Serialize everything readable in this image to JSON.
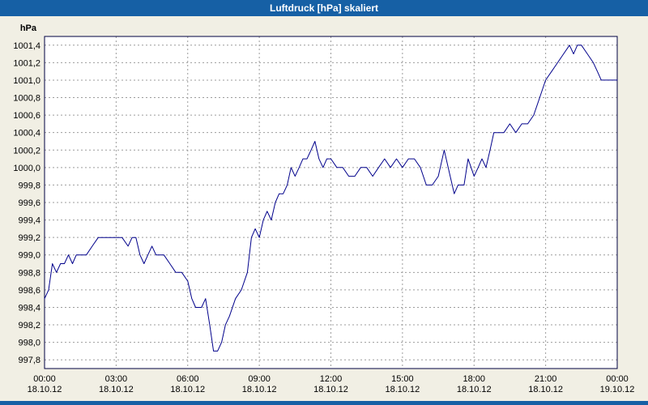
{
  "window": {
    "title": "Luftdruck [hPa] skaliert",
    "title_bar_color": "#1660a5",
    "frame_color": "#1660a5",
    "background_color": "#f1efe4"
  },
  "chart_data": {
    "type": "line",
    "title": "Luftdruck [hPa] skaliert",
    "unit_label": "hPa",
    "ylabel": "hPa",
    "xlabel": "",
    "grid": true,
    "legend": "none",
    "line_color": "#00008b",
    "grid_color": "#9c9c9c",
    "plot_background": "#ffffff",
    "ylim": [
      997.7,
      1001.5
    ],
    "xlim_hours": [
      0,
      24
    ],
    "y_ticks": [
      997.8,
      998.0,
      998.2,
      998.4,
      998.6,
      998.8,
      999.0,
      999.2,
      999.4,
      999.6,
      999.8,
      1000.0,
      1000.2,
      1000.4,
      1000.6,
      1000.8,
      1001.0,
      1001.2,
      1001.4
    ],
    "x_ticks": [
      {
        "hour": 0,
        "time": "00:00",
        "date": "18.10.12"
      },
      {
        "hour": 3,
        "time": "03:00",
        "date": "18.10.12"
      },
      {
        "hour": 6,
        "time": "06:00",
        "date": "18.10.12"
      },
      {
        "hour": 9,
        "time": "09:00",
        "date": "18.10.12"
      },
      {
        "hour": 12,
        "time": "12:00",
        "date": "18.10.12"
      },
      {
        "hour": 15,
        "time": "15:00",
        "date": "18.10.12"
      },
      {
        "hour": 18,
        "time": "18:00",
        "date": "18.10.12"
      },
      {
        "hour": 21,
        "time": "21:00",
        "date": "18.10.12"
      },
      {
        "hour": 24,
        "time": "00:00",
        "date": "19.10.12"
      }
    ],
    "series": [
      {
        "name": "Luftdruck",
        "points": [
          [
            0.0,
            998.5
          ],
          [
            0.17,
            998.6
          ],
          [
            0.33,
            998.9
          ],
          [
            0.5,
            998.8
          ],
          [
            0.67,
            998.9
          ],
          [
            0.83,
            998.9
          ],
          [
            1.0,
            999.0
          ],
          [
            1.17,
            998.9
          ],
          [
            1.33,
            999.0
          ],
          [
            1.5,
            999.0
          ],
          [
            1.75,
            999.0
          ],
          [
            2.0,
            999.1
          ],
          [
            2.25,
            999.2
          ],
          [
            2.5,
            999.2
          ],
          [
            2.75,
            999.2
          ],
          [
            3.0,
            999.2
          ],
          [
            3.25,
            999.2
          ],
          [
            3.5,
            999.1
          ],
          [
            3.67,
            999.2
          ],
          [
            3.83,
            999.2
          ],
          [
            4.0,
            999.0
          ],
          [
            4.17,
            998.9
          ],
          [
            4.33,
            999.0
          ],
          [
            4.5,
            999.1
          ],
          [
            4.67,
            999.0
          ],
          [
            5.0,
            999.0
          ],
          [
            5.25,
            998.9
          ],
          [
            5.5,
            998.8
          ],
          [
            5.75,
            998.8
          ],
          [
            6.0,
            998.7
          ],
          [
            6.17,
            998.5
          ],
          [
            6.33,
            998.4
          ],
          [
            6.58,
            998.4
          ],
          [
            6.75,
            998.5
          ],
          [
            6.92,
            998.2
          ],
          [
            7.08,
            997.9
          ],
          [
            7.25,
            997.9
          ],
          [
            7.42,
            998.0
          ],
          [
            7.58,
            998.2
          ],
          [
            7.75,
            998.3
          ],
          [
            8.0,
            998.5
          ],
          [
            8.25,
            998.6
          ],
          [
            8.5,
            998.8
          ],
          [
            8.67,
            999.2
          ],
          [
            8.83,
            999.3
          ],
          [
            9.0,
            999.2
          ],
          [
            9.17,
            999.4
          ],
          [
            9.33,
            999.5
          ],
          [
            9.5,
            999.4
          ],
          [
            9.67,
            999.6
          ],
          [
            9.83,
            999.7
          ],
          [
            10.0,
            999.7
          ],
          [
            10.17,
            999.8
          ],
          [
            10.33,
            1000.0
          ],
          [
            10.5,
            999.9
          ],
          [
            10.67,
            1000.0
          ],
          [
            10.83,
            1000.1
          ],
          [
            11.0,
            1000.1
          ],
          [
            11.17,
            1000.2
          ],
          [
            11.33,
            1000.3
          ],
          [
            11.5,
            1000.1
          ],
          [
            11.67,
            1000.0
          ],
          [
            11.83,
            1000.1
          ],
          [
            12.0,
            1000.1
          ],
          [
            12.25,
            1000.0
          ],
          [
            12.5,
            1000.0
          ],
          [
            12.75,
            999.9
          ],
          [
            13.0,
            999.9
          ],
          [
            13.25,
            1000.0
          ],
          [
            13.5,
            1000.0
          ],
          [
            13.75,
            999.9
          ],
          [
            14.0,
            1000.0
          ],
          [
            14.25,
            1000.1
          ],
          [
            14.5,
            1000.0
          ],
          [
            14.75,
            1000.1
          ],
          [
            15.0,
            1000.0
          ],
          [
            15.25,
            1000.1
          ],
          [
            15.5,
            1000.1
          ],
          [
            15.75,
            1000.0
          ],
          [
            16.0,
            999.8
          ],
          [
            16.25,
            999.8
          ],
          [
            16.5,
            999.9
          ],
          [
            16.75,
            1000.2
          ],
          [
            17.0,
            999.9
          ],
          [
            17.17,
            999.7
          ],
          [
            17.33,
            999.8
          ],
          [
            17.58,
            999.8
          ],
          [
            17.75,
            1000.1
          ],
          [
            18.0,
            999.9
          ],
          [
            18.17,
            1000.0
          ],
          [
            18.33,
            1000.1
          ],
          [
            18.5,
            1000.0
          ],
          [
            18.67,
            1000.2
          ],
          [
            18.83,
            1000.4
          ],
          [
            19.0,
            1000.4
          ],
          [
            19.25,
            1000.4
          ],
          [
            19.5,
            1000.5
          ],
          [
            19.75,
            1000.4
          ],
          [
            20.0,
            1000.5
          ],
          [
            20.25,
            1000.5
          ],
          [
            20.5,
            1000.6
          ],
          [
            20.75,
            1000.8
          ],
          [
            21.0,
            1001.0
          ],
          [
            21.25,
            1001.1
          ],
          [
            21.5,
            1001.2
          ],
          [
            21.75,
            1001.3
          ],
          [
            22.0,
            1001.4
          ],
          [
            22.17,
            1001.3
          ],
          [
            22.33,
            1001.4
          ],
          [
            22.5,
            1001.4
          ],
          [
            22.75,
            1001.3
          ],
          [
            23.0,
            1001.2
          ],
          [
            23.17,
            1001.1
          ],
          [
            23.33,
            1001.0
          ],
          [
            23.5,
            1001.0
          ],
          [
            23.75,
            1001.0
          ],
          [
            24.0,
            1001.0
          ]
        ]
      }
    ]
  }
}
